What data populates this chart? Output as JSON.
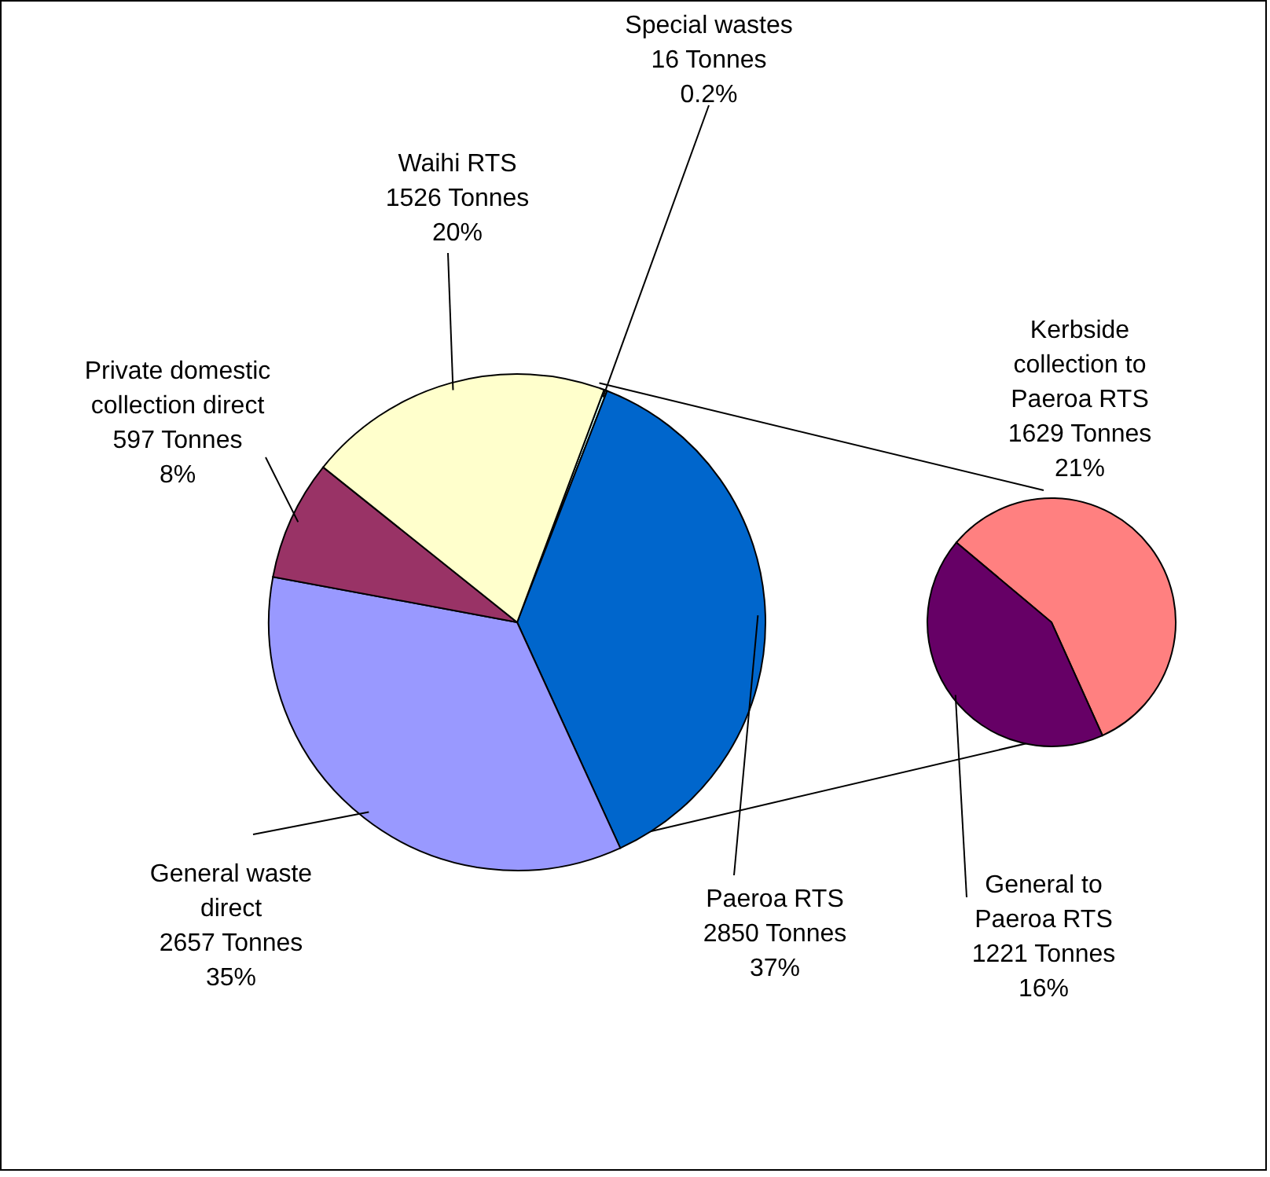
{
  "chart_data": [
    {
      "type": "pie",
      "categories": [
        "Special wastes",
        "Paeroa RTS",
        "General waste direct",
        "Private domestic collection direct",
        "Waihi RTS"
      ],
      "values": [
        16,
        2850,
        2657,
        597,
        1526
      ],
      "colors": [
        "#ccffff",
        "#0066cc",
        "#9999ff",
        "#993366",
        "#ffffcc"
      ],
      "value_labels": [
        "16 Tonnes\n0.2%",
        "2850 Tonnes\n37%",
        "2657 Tonnes\n35%",
        "597 Tonnes\n8%",
        "1526 Tonnes\n20%"
      ]
    },
    {
      "type": "pie",
      "categories": [
        "Kerbside collection to Paeroa RTS",
        "General to Paeroa RTS"
      ],
      "values": [
        1629,
        1221
      ],
      "colors": [
        "#ff8080",
        "#660066"
      ],
      "value_labels": [
        "1629 Tonnes\n21%",
        "1221 Tonnes\n16%"
      ]
    }
  ]
}
